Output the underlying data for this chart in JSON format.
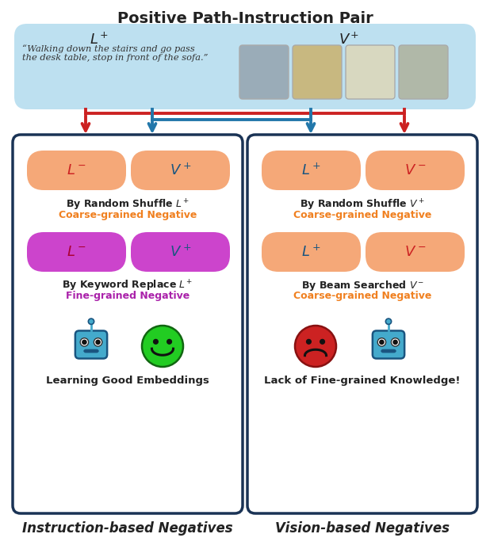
{
  "title": "Positive Path-Instruction Pair",
  "title_fontsize": 14,
  "top_box_color": "#bde0f0",
  "quote_text": "“Walking down the stairs and go pass\nthe desk table, stop in front of the sofa.”",
  "orange_pill_color": "#f5a878",
  "purple_pill_color": "#cc44cc",
  "arrow_red": "#cc2222",
  "arrow_blue": "#2277aa",
  "box_border": "#1a3355",
  "left_title": "Instruction-based Negatives",
  "right_title": "Vision-based Negatives",
  "left_bottom_text": "Learning Good Embeddings",
  "right_bottom_text": "Lack of Fine-grained Knowledge!",
  "coarse_color": "#f08020",
  "fine_color": "#aa22aa",
  "label_red": "#cc2222",
  "label_blue": "#1a5580",
  "img_colors": [
    "#9aacb8",
    "#c8b880",
    "#d8d8c0",
    "#b0b8a8"
  ]
}
